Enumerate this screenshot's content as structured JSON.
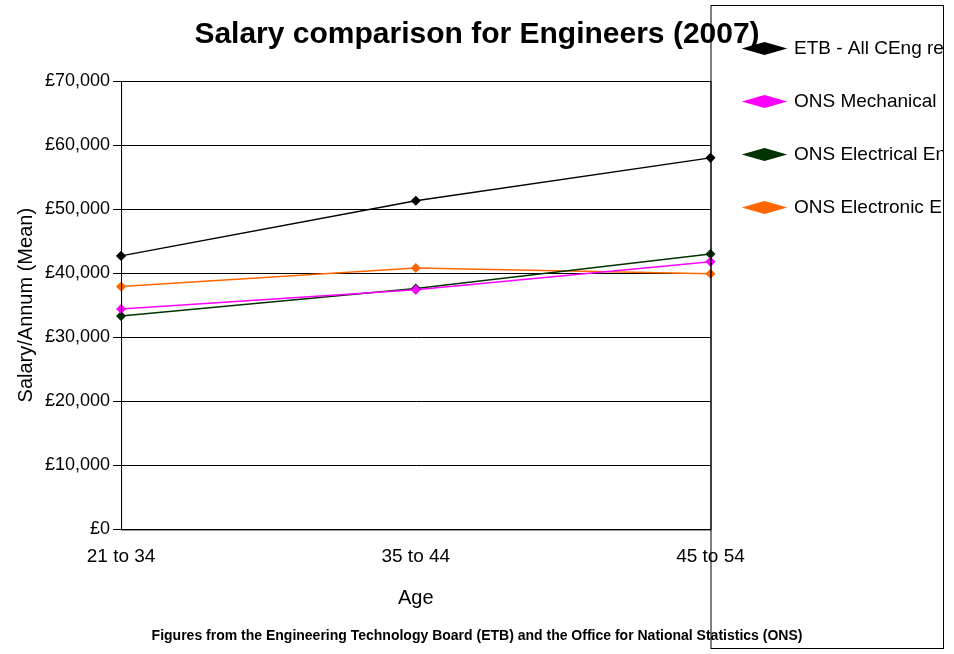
{
  "chart_data": {
    "type": "line",
    "title": "Salary comparison for Engineers (2007)",
    "subtitle": "Figures from the Engineering Technology Board (ETB) and the Office for National Statistics (ONS)",
    "x_label": "Age",
    "y_label": "Salary/Annum (Mean)",
    "categories": [
      "21 to 34",
      "35 to 44",
      "45 to 54"
    ],
    "series": [
      {
        "name": "ETB - All CEng registrants",
        "color": "#000000",
        "marker": "diamond",
        "values": [
          42700,
          51300,
          58000
        ]
      },
      {
        "name": "ONS Mechanical Engineer",
        "color": "#ff00ff",
        "marker": "diamond",
        "values": [
          34400,
          37400,
          41800
        ]
      },
      {
        "name": "ONS Electrical Engineer",
        "color": "#003300",
        "marker": "diamond",
        "values": [
          33300,
          37600,
          43000
        ]
      },
      {
        "name": "ONS Electronic Engineer",
        "color": "#ff6600",
        "marker": "diamond",
        "values": [
          37900,
          40800,
          39900
        ]
      }
    ],
    "ylim": [
      0,
      70000
    ],
    "yticks": [
      {
        "value": 0,
        "label": "£0"
      },
      {
        "value": 10000,
        "label": "£10,000"
      },
      {
        "value": 20000,
        "label": "£20,000"
      },
      {
        "value": 30000,
        "label": "£30,000"
      },
      {
        "value": 40000,
        "label": "£40,000"
      },
      {
        "value": 50000,
        "label": "£50,000"
      },
      {
        "value": 60000,
        "label": "£60,000"
      },
      {
        "value": 70000,
        "label": "£70,000"
      }
    ],
    "grid": true,
    "legend": "right"
  }
}
